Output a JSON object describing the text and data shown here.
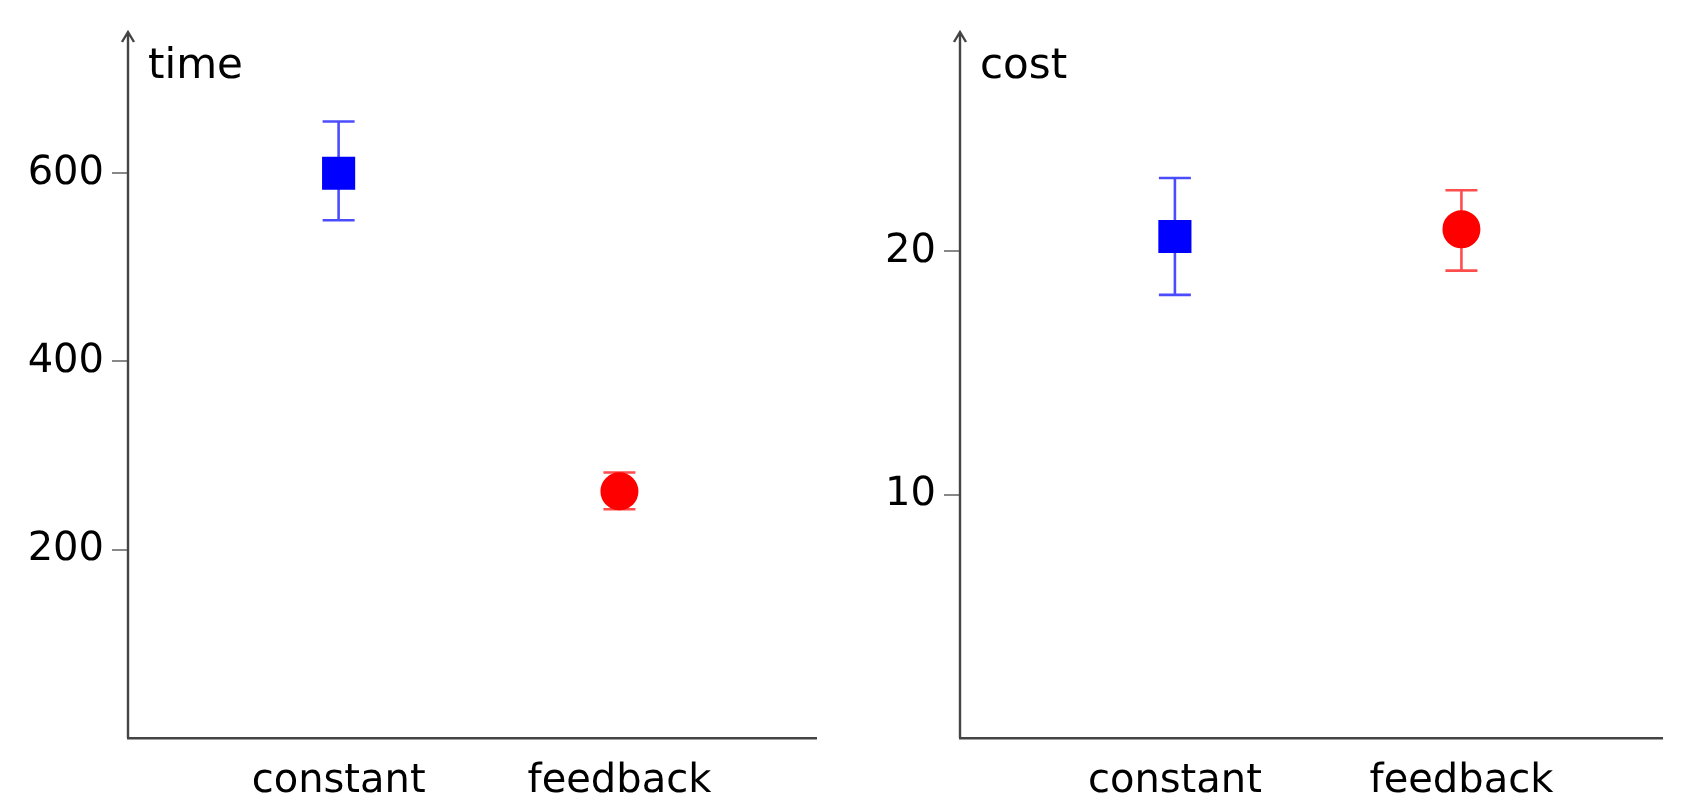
{
  "chart_data": [
    {
      "type": "scatter",
      "ylabel": "time",
      "categories": [
        "constant",
        "feedback"
      ],
      "ylim": [
        0,
        750
      ],
      "yticks": [
        200,
        400,
        600
      ],
      "grid": false,
      "legend": false,
      "series": [
        {
          "color": "#0000ff",
          "marker": "square",
          "values": [
            600,
            null
          ],
          "errors": [
            [
              550,
              655
            ],
            null
          ]
        },
        {
          "color": "#ff0000",
          "marker": "circle",
          "values": [
            null,
            262
          ],
          "errors": [
            null,
            [
              243,
              282
            ]
          ]
        }
      ]
    },
    {
      "type": "scatter",
      "ylabel": "cost",
      "categories": [
        "constant",
        "feedback"
      ],
      "ylim": [
        0,
        29
      ],
      "yticks": [
        10,
        20
      ],
      "grid": false,
      "legend": false,
      "series": [
        {
          "color": "#0000ff",
          "marker": "square",
          "values": [
            20.6,
            null
          ],
          "errors": [
            [
              18.2,
              23
            ],
            null
          ]
        },
        {
          "color": "#ff0000",
          "marker": "circle",
          "values": [
            null,
            20.9
          ],
          "errors": [
            null,
            [
              19.2,
              22.5
            ]
          ]
        }
      ]
    }
  ]
}
